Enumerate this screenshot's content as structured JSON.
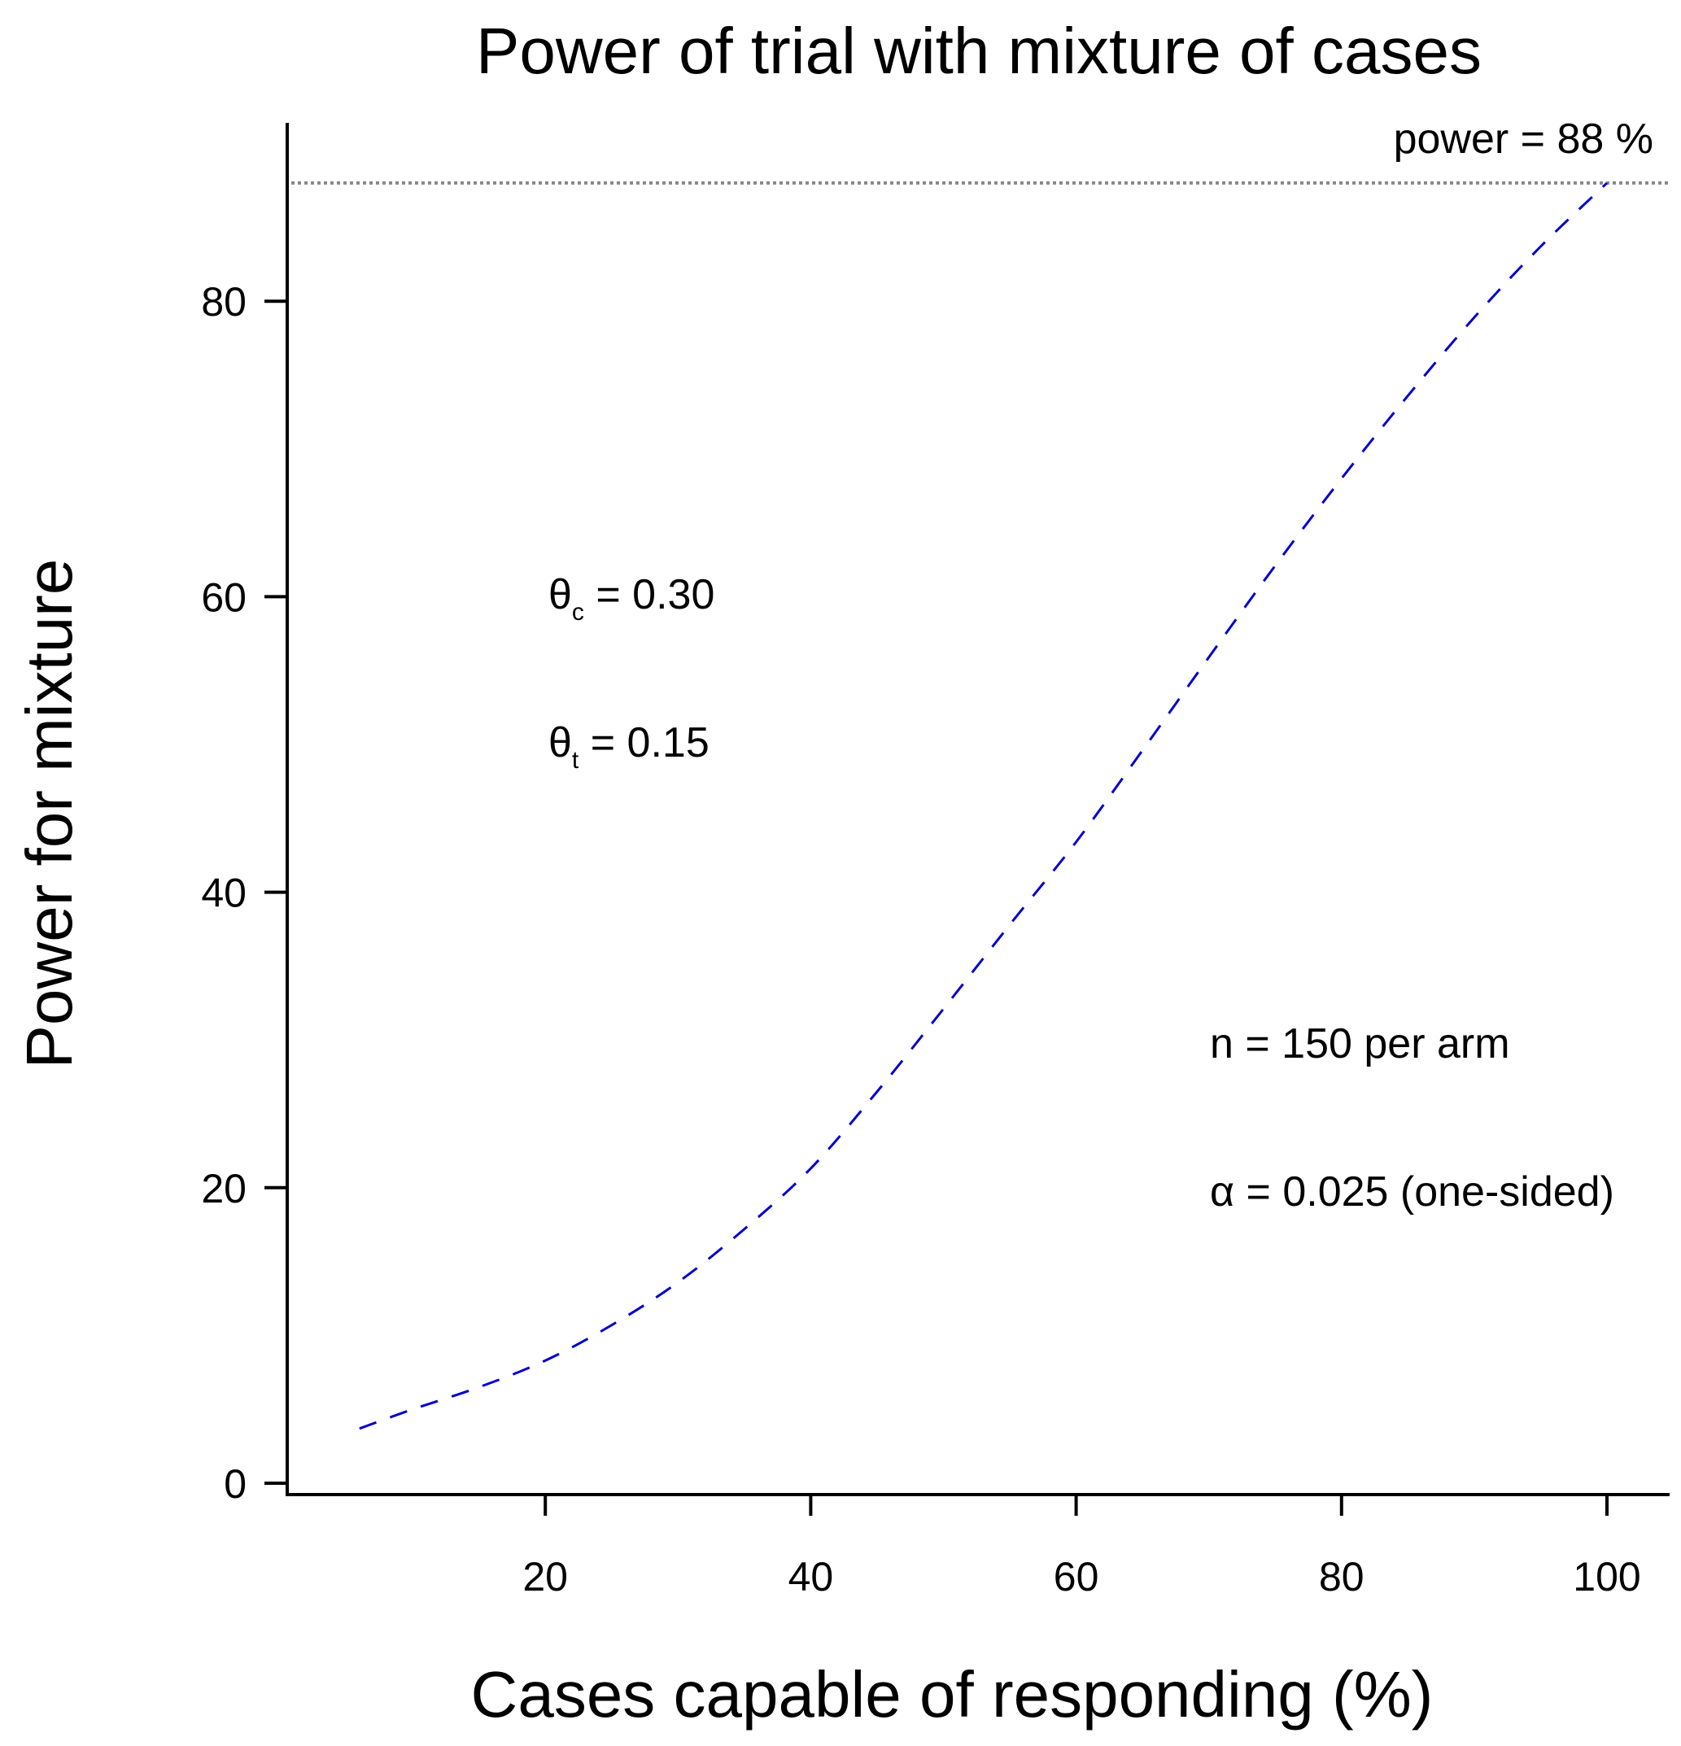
{
  "chart_data": {
    "type": "line",
    "title": "Power of trial with mixture of cases",
    "xlabel": "Cases capable of responding (%)",
    "ylabel": "Power for mixture",
    "xlim": [
      0,
      105
    ],
    "ylim": [
      0,
      90
    ],
    "x_ticks": [
      20,
      40,
      60,
      80,
      100
    ],
    "y_ticks": [
      0,
      20,
      40,
      60,
      80
    ],
    "grid": false,
    "series": [
      {
        "name": "power",
        "style": "dashed",
        "color": "#0000cc",
        "x": [
          6,
          10,
          15,
          20,
          25,
          30,
          35,
          40,
          45,
          50,
          55,
          60,
          65,
          70,
          75,
          80,
          85,
          90,
          95,
          100
        ],
        "y": [
          3.7,
          5.0,
          6.5,
          8.3,
          10.7,
          13.6,
          17.2,
          21.3,
          26.5,
          32.1,
          37.8,
          43.4,
          49.6,
          55.9,
          62.1,
          68.0,
          73.6,
          78.9,
          83.7,
          88.0
        ]
      }
    ],
    "reference_line": {
      "y": 88,
      "style": "dotted",
      "color": "#888888",
      "label": "power = 88 %"
    },
    "annotations": [
      {
        "id": "theta_c",
        "symbol": "θ",
        "subscript": "c",
        "text": " = 0.30"
      },
      {
        "id": "theta_t",
        "symbol": "θ",
        "subscript": "t",
        "text": " = 0.15"
      },
      {
        "id": "n",
        "text": "n = 150 per arm"
      },
      {
        "id": "alpha",
        "text": "α = 0.025 (one-sided)"
      }
    ]
  }
}
